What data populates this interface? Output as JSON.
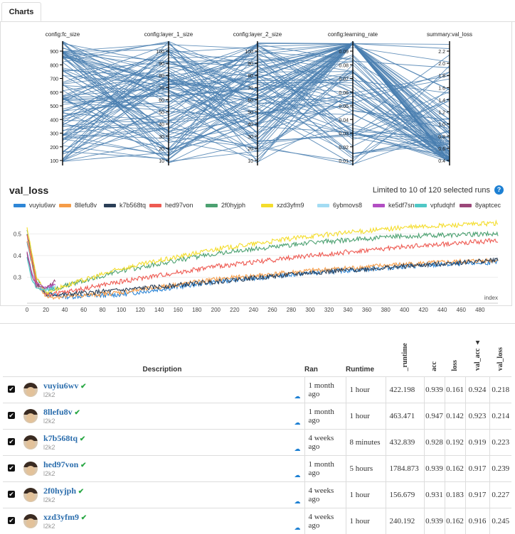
{
  "tabs": {
    "charts": "Charts"
  },
  "parallel": {
    "axes": [
      {
        "label": "config:fc_size",
        "ticks": [
          "900",
          "800",
          "700",
          "600",
          "500",
          "400",
          "300",
          "200",
          "100"
        ]
      },
      {
        "label": "config:layer_1_size",
        "ticks": [
          "100",
          "90",
          "80",
          "70",
          "60",
          "50",
          "40",
          "30",
          "20",
          "10"
        ]
      },
      {
        "label": "config:layer_2_size",
        "ticks": [
          "100",
          "90",
          "80",
          "70",
          "60",
          "50",
          "40",
          "30",
          "20",
          "10"
        ]
      },
      {
        "label": "config:learning_rate",
        "ticks": [
          "0.09",
          "0.08",
          "0.07",
          "0.06",
          "0.05",
          "0.04",
          "0.03",
          "0.02",
          "0.01"
        ]
      },
      {
        "label": "summary:val_loss",
        "ticks": [
          "2.2",
          "2.0",
          "1.8",
          "1.6",
          "1.4",
          "1.2",
          "1.0",
          "0.8",
          "0.6",
          "0.4"
        ]
      }
    ],
    "line_color": "#4a7fb0"
  },
  "val_loss": {
    "title": "val_loss",
    "limit_text": "Limited to 10 of 120 selected runs",
    "help": "?",
    "legend": [
      {
        "name": "vuyiu6wv",
        "color": "#2e86d6"
      },
      {
        "name": "8llefu8v",
        "color": "#f59c48"
      },
      {
        "name": "k7b568tq",
        "color": "#2b3f57"
      },
      {
        "name": "hed97von",
        "color": "#ee5a52"
      },
      {
        "name": "2f0hyjph",
        "color": "#4ca171"
      },
      {
        "name": "xzd3yfm9",
        "color": "#f4dd2c"
      },
      {
        "name": "6ybmovs8",
        "color": "#a3dcf3"
      },
      {
        "name": "ke5df7sn",
        "color": "#b24fc3"
      },
      {
        "name": "vpfudqhf",
        "color": "#50c8c6"
      },
      {
        "name": "8yaptcec",
        "color": "#9b4779"
      }
    ]
  },
  "chart_data": {
    "type": "line",
    "title": "val_loss",
    "xlabel": "index",
    "ylabel": "",
    "xlim": [
      0,
      499
    ],
    "ylim": [
      0.18,
      0.58
    ],
    "xticks": [
      "0",
      "20",
      "40",
      "60",
      "80",
      "100",
      "120",
      "140",
      "160",
      "180",
      "200",
      "220",
      "240",
      "260",
      "280",
      "300",
      "320",
      "340",
      "360",
      "380",
      "400",
      "420",
      "440",
      "460",
      "480"
    ],
    "yticks": [
      "0.5",
      "0.4",
      "0.3"
    ],
    "series": [
      {
        "name": "vuyiu6wv",
        "color": "#2e86d6",
        "points": [
          [
            0,
            0.46
          ],
          [
            10,
            0.27
          ],
          [
            20,
            0.22
          ],
          [
            40,
            0.21
          ],
          [
            100,
            0.22
          ],
          [
            200,
            0.28
          ],
          [
            300,
            0.32
          ],
          [
            400,
            0.35
          ],
          [
            499,
            0.37
          ]
        ]
      },
      {
        "name": "8llefu8v",
        "color": "#f59c48",
        "points": [
          [
            0,
            0.47
          ],
          [
            10,
            0.27
          ],
          [
            20,
            0.21
          ],
          [
            40,
            0.21
          ],
          [
            100,
            0.23
          ],
          [
            200,
            0.29
          ],
          [
            300,
            0.33
          ],
          [
            400,
            0.36
          ],
          [
            499,
            0.38
          ]
        ]
      },
      {
        "name": "k7b568tq",
        "color": "#2b3f57",
        "points": [
          [
            0,
            0.5
          ],
          [
            10,
            0.28
          ],
          [
            20,
            0.22
          ],
          [
            40,
            0.22
          ],
          [
            100,
            0.24
          ],
          [
            200,
            0.28
          ],
          [
            300,
            0.32
          ],
          [
            400,
            0.35
          ],
          [
            499,
            0.38
          ]
        ]
      },
      {
        "name": "hed97von",
        "color": "#ee5a52",
        "points": [
          [
            0,
            0.5
          ],
          [
            10,
            0.28
          ],
          [
            20,
            0.22
          ],
          [
            40,
            0.23
          ],
          [
            100,
            0.28
          ],
          [
            200,
            0.35
          ],
          [
            300,
            0.4
          ],
          [
            400,
            0.44
          ],
          [
            499,
            0.47
          ]
        ]
      },
      {
        "name": "2f0hyjph",
        "color": "#4ca171",
        "points": [
          [
            0,
            0.52
          ],
          [
            10,
            0.3
          ],
          [
            20,
            0.23
          ],
          [
            40,
            0.26
          ],
          [
            100,
            0.33
          ],
          [
            200,
            0.41
          ],
          [
            300,
            0.46
          ],
          [
            400,
            0.49
          ],
          [
            499,
            0.5
          ]
        ]
      },
      {
        "name": "xzd3yfm9",
        "color": "#f4dd2c",
        "points": [
          [
            0,
            0.53
          ],
          [
            10,
            0.3
          ],
          [
            20,
            0.23
          ],
          [
            40,
            0.26
          ],
          [
            100,
            0.34
          ],
          [
            200,
            0.43
          ],
          [
            300,
            0.49
          ],
          [
            400,
            0.53
          ],
          [
            499,
            0.55
          ]
        ]
      },
      {
        "name": "6ybmovs8",
        "color": "#a3dcf3",
        "points": [
          [
            0,
            0.4
          ],
          [
            5,
            0.3
          ],
          [
            10,
            0.26
          ],
          [
            20,
            0.24
          ],
          [
            30,
            0.26
          ]
        ]
      },
      {
        "name": "ke5df7sn",
        "color": "#b24fc3",
        "points": [
          [
            0,
            0.42
          ],
          [
            5,
            0.32
          ],
          [
            10,
            0.27
          ],
          [
            20,
            0.25
          ],
          [
            30,
            0.27
          ]
        ]
      },
      {
        "name": "vpfudqhf",
        "color": "#50c8c6",
        "points": [
          [
            0,
            0.39
          ],
          [
            5,
            0.29
          ],
          [
            10,
            0.25
          ],
          [
            20,
            0.24
          ],
          [
            30,
            0.25
          ]
        ]
      },
      {
        "name": "8yaptcec",
        "color": "#9b4779",
        "points": [
          [
            0,
            0.41
          ],
          [
            5,
            0.31
          ],
          [
            10,
            0.26
          ],
          [
            20,
            0.25
          ],
          [
            30,
            0.28
          ]
        ]
      }
    ]
  },
  "table": {
    "headers": {
      "description": "Description",
      "ran": "Ran",
      "runtime": "Runtime",
      "_runtime": "_runtime",
      "acc": "acc",
      "loss": "loss",
      "val_acc": "val_acc ▴",
      "val_loss": "val_loss"
    },
    "rows": [
      {
        "name": "vuyiu6wv",
        "user": "l2k2",
        "ran": "1 month ago",
        "runtime": "1 hour",
        "_runtime": "422.198",
        "acc": "0.939",
        "loss": "0.161",
        "val_acc": "0.924",
        "val_loss": "0.218"
      },
      {
        "name": "8llefu8v",
        "user": "l2k2",
        "ran": "1 month ago",
        "runtime": "1 hour",
        "_runtime": "463.471",
        "acc": "0.947",
        "loss": "0.142",
        "val_acc": "0.923",
        "val_loss": "0.214"
      },
      {
        "name": "k7b568tq",
        "user": "l2k2",
        "ran": "4 weeks ago",
        "runtime": "8 minutes",
        "_runtime": "432.839",
        "acc": "0.928",
        "loss": "0.192",
        "val_acc": "0.919",
        "val_loss": "0.223"
      },
      {
        "name": "hed97von",
        "user": "l2k2",
        "ran": "1 month ago",
        "runtime": "5 hours",
        "_runtime": "1784.873",
        "acc": "0.939",
        "loss": "0.162",
        "val_acc": "0.917",
        "val_loss": "0.239"
      },
      {
        "name": "2f0hyjph",
        "user": "l2k2",
        "ran": "4 weeks ago",
        "runtime": "1 hour",
        "_runtime": "156.679",
        "acc": "0.931",
        "loss": "0.183",
        "val_acc": "0.917",
        "val_loss": "0.227"
      },
      {
        "name": "xzd3yfm9",
        "user": "l2k2",
        "ran": "4 weeks ago",
        "runtime": "1 hour",
        "_runtime": "240.192",
        "acc": "0.939",
        "loss": "0.162",
        "val_acc": "0.916",
        "val_loss": "0.245"
      }
    ]
  }
}
